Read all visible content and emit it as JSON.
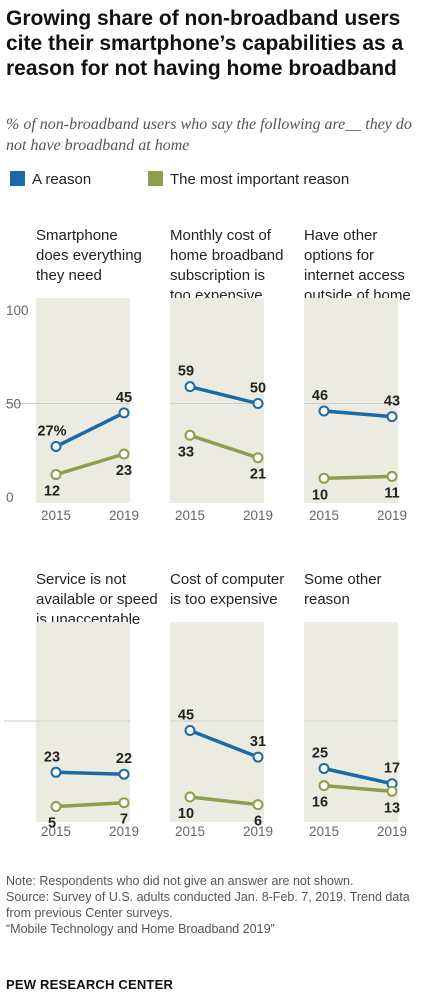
{
  "title": "Growing share of non-broadband users cite their smartphone’s capabilities as a reason for not having home broadband",
  "subtitle": "% of non-broadband users who say the following are__ they do not have broadband at home",
  "legend": [
    {
      "label": "A reason",
      "color": "#1a69a8"
    },
    {
      "label": "The most important reason",
      "color": "#8c9f4b"
    }
  ],
  "notes": {
    "note": "Note: Respondents who did not give an answer are not shown.",
    "source": "Source: Survey of U.S. adults conducted Jan. 8-Feb. 7, 2019. Trend data from previous Center surveys.",
    "report": "“Mobile Technology and Home Broadband 2019”"
  },
  "source_org": "PEW RESEARCH CENTER",
  "chart_data": {
    "type": "line",
    "x": [
      "2015",
      "2019"
    ],
    "y_ticks": [
      "100",
      "50",
      "0"
    ],
    "ylim": [
      0,
      100
    ],
    "colors": {
      "panel_bg": "#ecebe2",
      "grid": "#cccccc",
      "reason": "#1a69a8",
      "important": "#8c9f4b"
    },
    "panels": [
      {
        "title": [
          "Smartphone",
          "does everything",
          "they need"
        ],
        "series": [
          {
            "name": "A reason",
            "values": [
              27,
              45
            ],
            "labels": [
              "27%",
              "45"
            ]
          },
          {
            "name": "The most important reason",
            "values": [
              12,
              23
            ],
            "labels": [
              "12",
              "23"
            ]
          }
        ]
      },
      {
        "title": [
          "Monthly cost of",
          "home broadband",
          "subscription is",
          "too expensive"
        ],
        "series": [
          {
            "name": "A reason",
            "values": [
              59,
              50
            ],
            "labels": [
              "59",
              "50"
            ]
          },
          {
            "name": "The most important reason",
            "values": [
              33,
              21
            ],
            "labels": [
              "33",
              "21"
            ]
          }
        ]
      },
      {
        "title": [
          "Have other",
          "options for",
          "internet access",
          "outside of home"
        ],
        "series": [
          {
            "name": "A reason",
            "values": [
              46,
              43
            ],
            "labels": [
              "46",
              "43"
            ]
          },
          {
            "name": "The most important reason",
            "values": [
              10,
              11
            ],
            "labels": [
              "10",
              "11"
            ]
          }
        ]
      },
      {
        "title": [
          "Service is not",
          "available or speed",
          "is unacceptable"
        ],
        "series": [
          {
            "name": "A reason",
            "values": [
              23,
              22
            ],
            "labels": [
              "23",
              "22"
            ]
          },
          {
            "name": "The most important reason",
            "values": [
              5,
              7
            ],
            "labels": [
              "5",
              "7"
            ]
          }
        ]
      },
      {
        "title": [
          "Cost of computer",
          "is too expensive"
        ],
        "series": [
          {
            "name": "A reason",
            "values": [
              45,
              31
            ],
            "labels": [
              "45",
              "31"
            ]
          },
          {
            "name": "The most important reason",
            "values": [
              10,
              6
            ],
            "labels": [
              "10",
              "6"
            ]
          }
        ]
      },
      {
        "title": [
          "Some other",
          "reason"
        ],
        "series": [
          {
            "name": "A reason",
            "values": [
              25,
              17
            ],
            "labels": [
              "25",
              "17"
            ]
          },
          {
            "name": "The most important reason",
            "values": [
              16,
              13
            ],
            "labels": [
              "16",
              "13"
            ]
          }
        ]
      }
    ]
  }
}
